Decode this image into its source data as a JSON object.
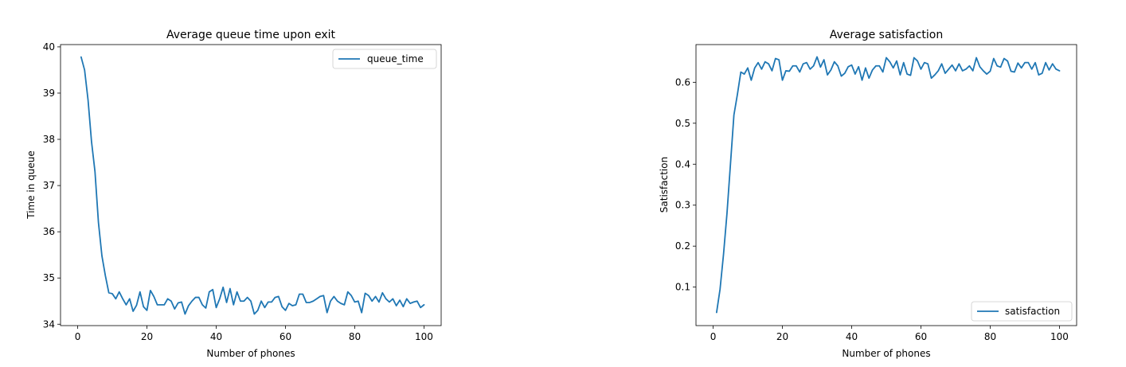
{
  "charts": [
    {
      "id": "queue",
      "title": "Average queue time upon exit",
      "xlabel": "Number of phones",
      "ylabel": "Time in queue",
      "legend_label": "queue_time",
      "legend_position": "upper-right",
      "xticks": [
        "0",
        "20",
        "40",
        "60",
        "80",
        "100"
      ],
      "yticks": [
        "34",
        "35",
        "36",
        "37",
        "38",
        "39",
        "40"
      ]
    },
    {
      "id": "satisfaction",
      "title": "Average satisfaction",
      "xlabel": "Number of phones",
      "ylabel": "Satisfaction",
      "legend_label": "satisfaction",
      "legend_position": "lower-right",
      "xticks": [
        "0",
        "20",
        "40",
        "60",
        "80",
        "100"
      ],
      "yticks": [
        "0.1",
        "0.2",
        "0.3",
        "0.4",
        "0.5",
        "0.6"
      ]
    }
  ],
  "colors": {
    "line": "#1f77b4"
  },
  "chart_data": [
    {
      "type": "line",
      "title": "Average queue time upon exit",
      "xlabel": "Number of phones",
      "ylabel": "Time in queue",
      "xlim": [
        -4.95,
        104.95
      ],
      "ylim": [
        33.97,
        40.05
      ],
      "grid": false,
      "legend": "upper-right",
      "series": [
        {
          "name": "queue_time",
          "x_start": 1,
          "x_step": 1,
          "values": [
            39.78,
            39.5,
            38.85,
            37.95,
            37.3,
            36.2,
            35.48,
            35.05,
            34.68,
            34.66,
            34.55,
            34.7,
            34.55,
            34.42,
            34.55,
            34.28,
            34.41,
            34.7,
            34.38,
            34.3,
            34.73,
            34.6,
            34.42,
            34.42,
            34.42,
            34.55,
            34.5,
            34.33,
            34.46,
            34.48,
            34.22,
            34.4,
            34.5,
            34.58,
            34.58,
            34.42,
            34.35,
            34.7,
            34.75,
            34.36,
            34.55,
            34.8,
            34.47,
            34.77,
            34.42,
            34.7,
            34.5,
            34.5,
            34.58,
            34.5,
            34.22,
            34.3,
            34.5,
            34.36,
            34.48,
            34.48,
            34.58,
            34.6,
            34.38,
            34.3,
            34.45,
            34.4,
            34.42,
            34.65,
            34.65,
            34.47,
            34.47,
            34.5,
            34.55,
            34.6,
            34.62,
            34.25,
            34.5,
            34.6,
            34.5,
            34.45,
            34.42,
            34.7,
            34.62,
            34.48,
            34.5,
            34.25,
            34.67,
            34.62,
            34.5,
            34.6,
            34.48,
            34.68,
            34.55,
            34.48,
            34.55,
            34.4,
            34.52,
            34.38,
            34.55,
            34.45,
            34.48,
            34.5,
            34.36,
            34.42
          ]
        }
      ]
    },
    {
      "type": "line",
      "title": "Average satisfaction",
      "xlabel": "Number of phones",
      "ylabel": "Satisfaction",
      "xlim": [
        -4.95,
        104.95
      ],
      "ylim": [
        0.006,
        0.692
      ],
      "grid": false,
      "legend": "lower-right",
      "series": [
        {
          "name": "satisfaction",
          "x_start": 1,
          "x_step": 1,
          "values": [
            0.038,
            0.095,
            0.18,
            0.28,
            0.4,
            0.52,
            0.57,
            0.625,
            0.62,
            0.635,
            0.605,
            0.635,
            0.648,
            0.632,
            0.65,
            0.645,
            0.628,
            0.658,
            0.655,
            0.605,
            0.628,
            0.627,
            0.64,
            0.64,
            0.625,
            0.645,
            0.648,
            0.632,
            0.64,
            0.662,
            0.637,
            0.655,
            0.618,
            0.63,
            0.65,
            0.64,
            0.615,
            0.622,
            0.638,
            0.642,
            0.62,
            0.638,
            0.605,
            0.635,
            0.61,
            0.63,
            0.64,
            0.64,
            0.625,
            0.66,
            0.65,
            0.635,
            0.652,
            0.618,
            0.648,
            0.62,
            0.617,
            0.66,
            0.652,
            0.632,
            0.648,
            0.645,
            0.61,
            0.618,
            0.628,
            0.645,
            0.622,
            0.632,
            0.642,
            0.628,
            0.645,
            0.628,
            0.632,
            0.64,
            0.628,
            0.66,
            0.638,
            0.628,
            0.62,
            0.627,
            0.658,
            0.64,
            0.637,
            0.658,
            0.652,
            0.627,
            0.625,
            0.647,
            0.635,
            0.648,
            0.648,
            0.632,
            0.648,
            0.618,
            0.622,
            0.648,
            0.63,
            0.645,
            0.632,
            0.628
          ]
        }
      ]
    }
  ]
}
